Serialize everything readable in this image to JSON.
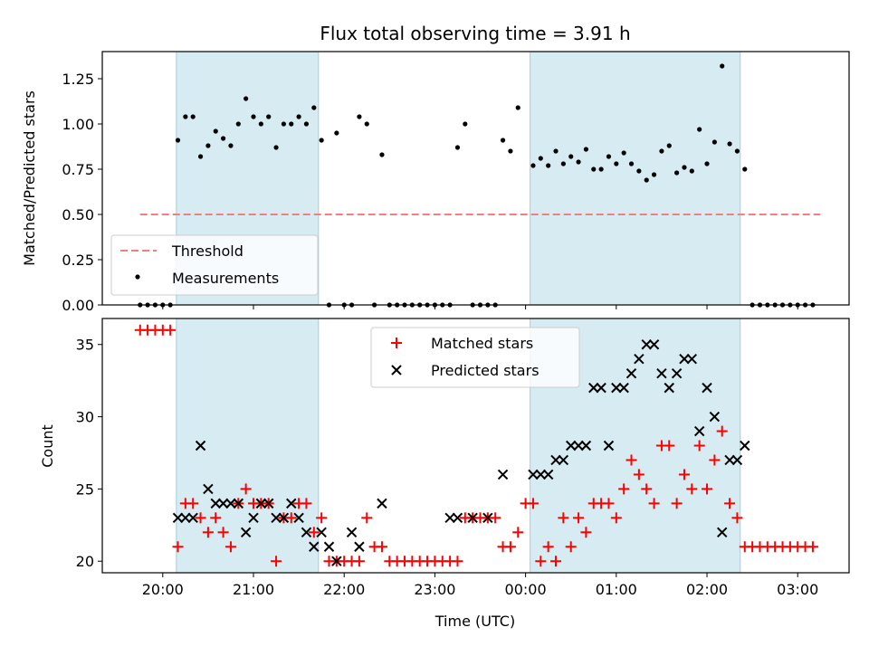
{
  "chart_data": [
    {
      "type": "line",
      "panel": "top",
      "title": "Flux total observing time = 3.91 h",
      "xlabel": "",
      "ylabel": "Matched/Predicted stars",
      "xlim": [
        "19:20",
        "03:34"
      ],
      "ylim": [
        0,
        1.4
      ],
      "yticks": [
        "0.00",
        "0.25",
        "0.50",
        "0.75",
        "1.00",
        "1.25"
      ],
      "grid": false,
      "legend_position": "lower-left",
      "shaded_intervals": [
        [
          "20:09",
          "21:43"
        ],
        [
          "00:03",
          "02:22"
        ]
      ],
      "series": [
        {
          "name": "Threshold",
          "style": "dashed-line",
          "color": "#f08080",
          "x": [
            "19:45",
            "03:15"
          ],
          "y": [
            0.5,
            0.5
          ]
        },
        {
          "name": "Measurements",
          "style": "scatter",
          "color": "#000000",
          "x": [
            "19:45",
            "19:50",
            "19:55",
            "20:00",
            "20:05",
            "20:10",
            "20:15",
            "20:20",
            "20:25",
            "20:30",
            "20:35",
            "20:40",
            "20:45",
            "20:50",
            "20:55",
            "21:00",
            "21:05",
            "21:10",
            "21:15",
            "21:20",
            "21:25",
            "21:30",
            "21:35",
            "21:40",
            "21:45",
            "21:50",
            "21:55",
            "22:00",
            "22:05",
            "22:10",
            "22:15",
            "22:20",
            "22:25",
            "22:30",
            "22:35",
            "22:40",
            "22:45",
            "22:50",
            "22:55",
            "23:00",
            "23:05",
            "23:10",
            "23:15",
            "23:20",
            "23:25",
            "23:30",
            "23:35",
            "23:40",
            "23:45",
            "23:50",
            "23:55",
            "00:05",
            "00:10",
            "00:15",
            "00:20",
            "00:25",
            "00:30",
            "00:35",
            "00:40",
            "00:45",
            "00:50",
            "00:55",
            "01:00",
            "01:05",
            "01:10",
            "01:15",
            "01:20",
            "01:25",
            "01:30",
            "01:35",
            "01:40",
            "01:45",
            "01:50",
            "01:55",
            "02:00",
            "02:05",
            "02:10",
            "02:15",
            "02:20",
            "02:25",
            "02:30",
            "02:35",
            "02:40",
            "02:45",
            "02:50",
            "02:55",
            "03:00",
            "03:05",
            "03:10"
          ],
          "y": [
            0,
            0,
            0,
            0,
            0,
            0.91,
            1.04,
            1.04,
            0.82,
            0.88,
            0.96,
            0.92,
            0.88,
            1.0,
            1.14,
            1.04,
            1.0,
            1.04,
            0.87,
            1.0,
            1.0,
            1.04,
            1.0,
            1.09,
            0.91,
            0,
            0.95,
            0,
            0,
            1.04,
            1.0,
            0,
            0.83,
            0,
            0,
            0,
            0,
            0,
            0,
            0,
            0,
            0,
            0.87,
            1.0,
            0,
            0,
            0,
            0,
            0.91,
            0.85,
            1.09,
            0.77,
            0.81,
            0.77,
            0.85,
            0.78,
            0.82,
            0.79,
            0.86,
            0.75,
            0.75,
            0.82,
            0.78,
            0.84,
            0.78,
            0.74,
            0.69,
            0.72,
            0.85,
            0.88,
            0.73,
            0.76,
            0.74,
            0.97,
            0.78,
            0.9,
            1.32,
            0.89,
            0.85,
            0.75,
            0,
            0,
            0,
            0,
            0,
            0,
            0,
            0,
            0
          ]
        }
      ]
    },
    {
      "type": "scatter",
      "panel": "bottom",
      "title": "",
      "xlabel": "Time (UTC)",
      "ylabel": "Count",
      "xlim": [
        "19:20",
        "03:34"
      ],
      "ylim": [
        19.2,
        36.8
      ],
      "xticks": [
        "20:00",
        "21:00",
        "22:00",
        "23:00",
        "00:00",
        "01:00",
        "02:00",
        "03:00"
      ],
      "yticks": [
        "20",
        "25",
        "30",
        "35"
      ],
      "grid": false,
      "legend_position": "upper-center",
      "shaded_intervals": [
        [
          "20:09",
          "21:43"
        ],
        [
          "00:03",
          "02:22"
        ]
      ],
      "series": [
        {
          "name": "Matched stars",
          "marker": "plus",
          "color": "#ff0000",
          "x": [
            "19:45",
            "19:50",
            "19:55",
            "20:00",
            "20:05",
            "20:10",
            "20:15",
            "20:20",
            "20:25",
            "20:30",
            "20:35",
            "20:40",
            "20:45",
            "20:50",
            "20:55",
            "21:00",
            "21:05",
            "21:10",
            "21:15",
            "21:20",
            "21:25",
            "21:30",
            "21:35",
            "21:40",
            "21:45",
            "21:50",
            "21:55",
            "22:00",
            "22:05",
            "22:10",
            "22:15",
            "22:20",
            "22:25",
            "22:30",
            "22:35",
            "22:40",
            "22:45",
            "22:50",
            "22:55",
            "23:00",
            "23:05",
            "23:10",
            "23:15",
            "23:20",
            "23:25",
            "23:30",
            "23:35",
            "23:40",
            "23:45",
            "23:50",
            "23:55",
            "00:00",
            "00:05",
            "00:10",
            "00:15",
            "00:20",
            "00:25",
            "00:30",
            "00:35",
            "00:40",
            "00:45",
            "00:50",
            "00:55",
            "01:00",
            "01:05",
            "01:10",
            "01:15",
            "01:20",
            "01:25",
            "01:30",
            "01:35",
            "01:40",
            "01:45",
            "01:50",
            "01:55",
            "02:00",
            "02:05",
            "02:10",
            "02:15",
            "02:20",
            "02:25",
            "02:30",
            "02:35",
            "02:40",
            "02:45",
            "02:50",
            "02:55",
            "03:00",
            "03:05",
            "03:10"
          ],
          "y": [
            36,
            36,
            36,
            36,
            36,
            21,
            24,
            24,
            23,
            22,
            23,
            22,
            21,
            24,
            25,
            24,
            24,
            24,
            20,
            23,
            23,
            24,
            24,
            22,
            23,
            20,
            20,
            20,
            20,
            20,
            23,
            21,
            21,
            20,
            20,
            20,
            20,
            20,
            20,
            20,
            20,
            20,
            20,
            23,
            23,
            23,
            23,
            23,
            21,
            21,
            22,
            24,
            24,
            20,
            21,
            20,
            23,
            21,
            23,
            22,
            24,
            24,
            24,
            23,
            25,
            27,
            26,
            25,
            24,
            28,
            28,
            24,
            26,
            25,
            28,
            25,
            27,
            29,
            24,
            23,
            21,
            21,
            21,
            21,
            21,
            21,
            21,
            21,
            21,
            21
          ]
        },
        {
          "name": "Predicted stars",
          "marker": "x",
          "color": "#000000",
          "x": [
            "20:10",
            "20:15",
            "20:20",
            "20:25",
            "20:30",
            "20:35",
            "20:40",
            "20:45",
            "20:50",
            "20:55",
            "21:00",
            "21:05",
            "21:10",
            "21:15",
            "21:20",
            "21:25",
            "21:30",
            "21:35",
            "21:40",
            "21:45",
            "21:50",
            "21:55",
            "22:05",
            "22:10",
            "22:25",
            "23:10",
            "23:15",
            "23:25",
            "23:35",
            "23:45",
            "00:05",
            "00:10",
            "00:15",
            "00:20",
            "00:25",
            "00:30",
            "00:35",
            "00:40",
            "00:45",
            "00:50",
            "00:55",
            "01:00",
            "01:05",
            "01:10",
            "01:15",
            "01:20",
            "01:25",
            "01:30",
            "01:35",
            "01:40",
            "01:45",
            "01:50",
            "01:55",
            "02:00",
            "02:05",
            "02:10",
            "02:15",
            "02:20",
            "02:25"
          ],
          "y": [
            23,
            23,
            23,
            28,
            25,
            24,
            24,
            24,
            24,
            22,
            23,
            24,
            24,
            23,
            23,
            24,
            23,
            22,
            21,
            22,
            21,
            20,
            22,
            21,
            24,
            23,
            23,
            23,
            23,
            26,
            26,
            26,
            26,
            27,
            27,
            28,
            28,
            28,
            32,
            32,
            28,
            32,
            32,
            33,
            34,
            35,
            35,
            33,
            32,
            33,
            34,
            34,
            29,
            32,
            30,
            22,
            27,
            27,
            28
          ]
        }
      ]
    }
  ]
}
